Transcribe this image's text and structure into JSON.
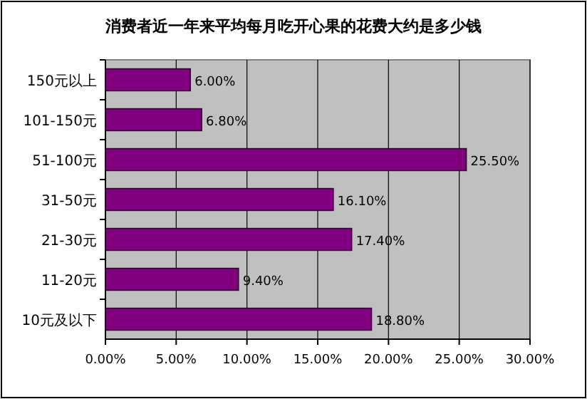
{
  "chart_data": {
    "type": "bar",
    "orientation": "horizontal",
    "title": "消费者近一年来平均每月吃开心果的花费大约是多少钱",
    "categories": [
      "150元以上",
      "101-150元",
      "51-100元",
      "31-50元",
      "21-30元",
      "11-20元",
      "10元及以下"
    ],
    "values": [
      6.0,
      6.8,
      25.5,
      16.1,
      17.4,
      9.4,
      18.8
    ],
    "value_labels": [
      "6.00%",
      "6.80%",
      "25.50%",
      "16.10%",
      "17.40%",
      "9.40%",
      "18.80%"
    ],
    "color": "#800080",
    "xlim": [
      0,
      30
    ],
    "xticks": [
      {
        "value": 0,
        "label": "0.00%"
      },
      {
        "value": 5,
        "label": "5.00%"
      },
      {
        "value": 10,
        "label": "10.00%"
      },
      {
        "value": 15,
        "label": "15.00%"
      },
      {
        "value": 20,
        "label": "20.00%"
      },
      {
        "value": 25,
        "label": "25.00%"
      },
      {
        "value": 30,
        "label": "30.00%"
      }
    ],
    "grid": "x"
  }
}
